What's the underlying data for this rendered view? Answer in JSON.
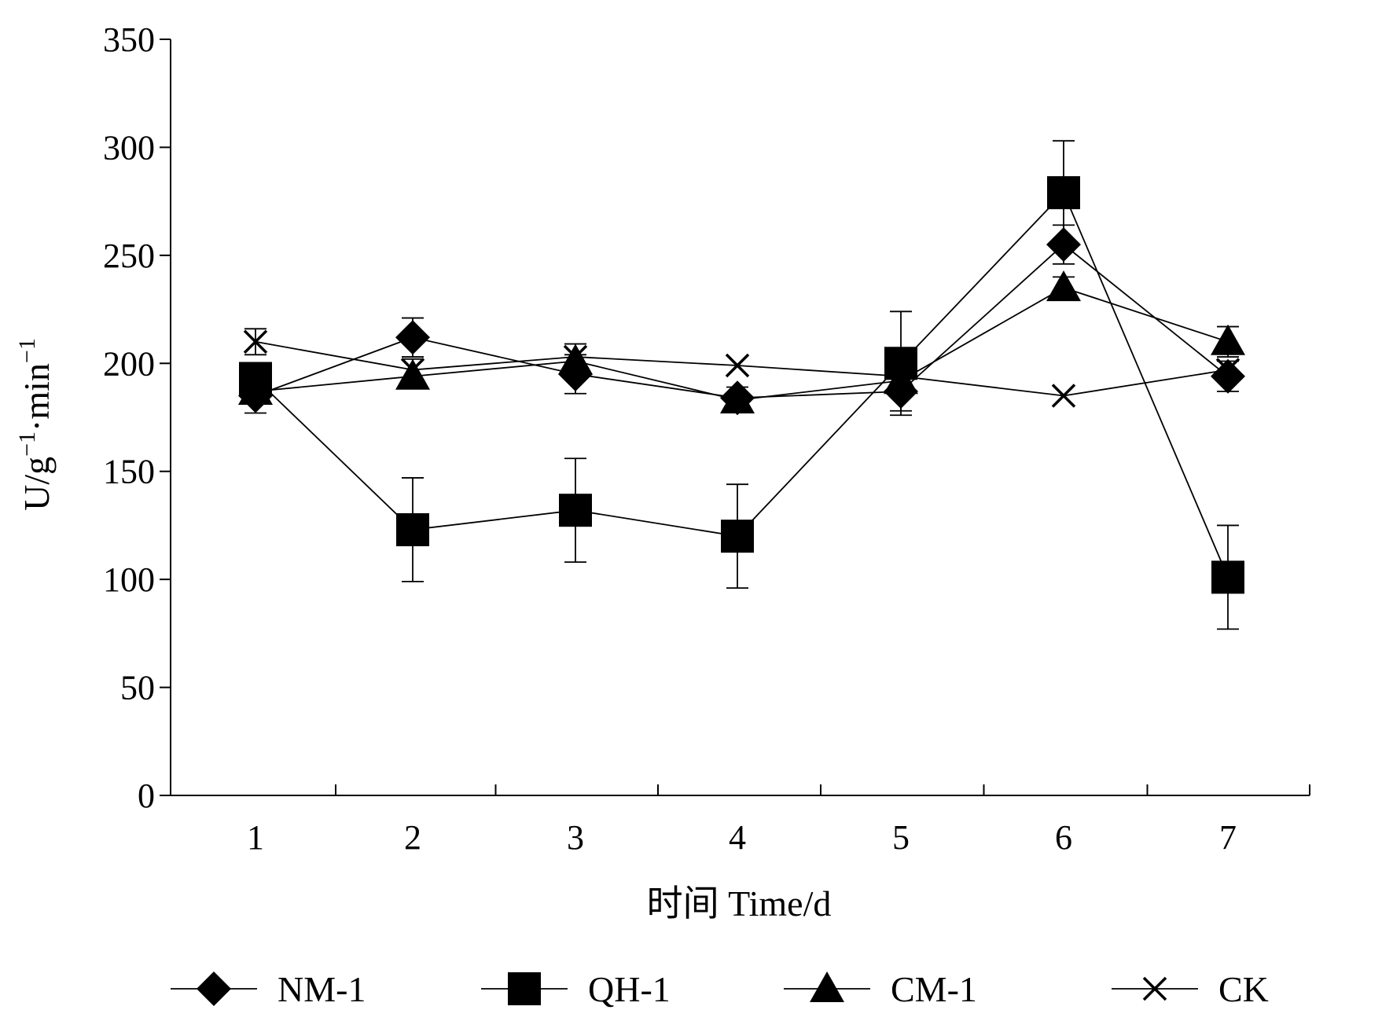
{
  "chart_data": {
    "type": "line",
    "xlabel": "时间  Time/d",
    "ylabel_base": "U/g",
    "ylabel_sup1": "−1",
    "ylabel_mid": "·min",
    "ylabel_sup2": "−1",
    "x": [
      1,
      2,
      3,
      4,
      5,
      6,
      7
    ],
    "x_tick_labels": [
      "1",
      "2",
      "3",
      "4",
      "5",
      "6",
      "7"
    ],
    "y_ticks": [
      0,
      50,
      100,
      150,
      200,
      250,
      300,
      350
    ],
    "y_tick_labels": [
      "0",
      "50",
      "100",
      "150",
      "200",
      "250",
      "300",
      "350"
    ],
    "ylim": [
      0,
      350
    ],
    "grid": false,
    "legend_position": "bottom",
    "series": [
      {
        "name": "NM-1",
        "marker": "diamond",
        "values": [
          185,
          212,
          195,
          184,
          187,
          255,
          194
        ],
        "errors": [
          8,
          9,
          9,
          5,
          9,
          9,
          7
        ]
      },
      {
        "name": "QH-1",
        "marker": "square",
        "values": [
          193,
          123,
          132,
          120,
          200,
          279,
          101
        ],
        "errors": [
          0,
          24,
          24,
          24,
          24,
          24,
          24
        ]
      },
      {
        "name": "CM-1",
        "marker": "triangle",
        "values": [
          187,
          194,
          201,
          183,
          192,
          235,
          210
        ],
        "errors": [
          0,
          0,
          0,
          0,
          0,
          5,
          7
        ]
      },
      {
        "name": "CK",
        "marker": "cross",
        "values": [
          210,
          197,
          203,
          199,
          194,
          185,
          197
        ],
        "errors": [
          6,
          5,
          6,
          0,
          0,
          0,
          0
        ]
      }
    ],
    "colors": {
      "line": "#000000",
      "marker": "#000000",
      "background": "#ffffff"
    }
  }
}
